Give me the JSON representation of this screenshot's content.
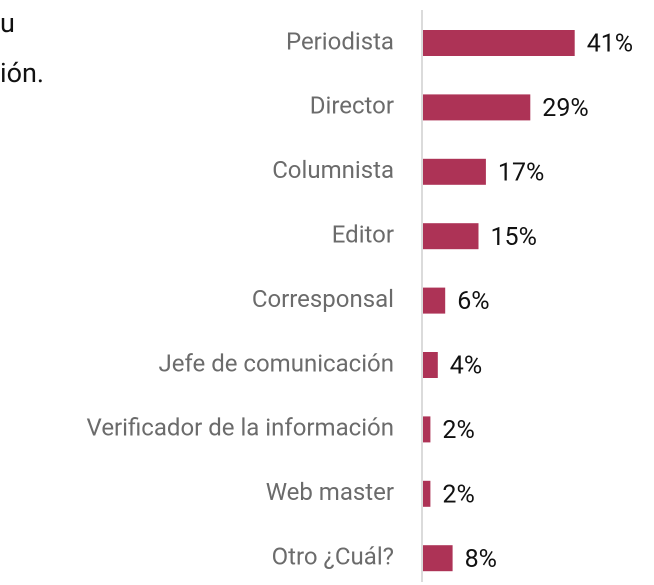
{
  "chart_data": {
    "type": "bar",
    "orientation": "horizontal",
    "title_lines": [
      "u",
      "ión."
    ],
    "categories": [
      "Periodista",
      "Director",
      "Columnista",
      "Editor",
      "Corresponsal",
      "Jefe de comunicación",
      "Verificador de la información",
      "Web master",
      "Otro ¿Cuál?"
    ],
    "values": [
      41,
      29,
      17,
      15,
      6,
      4,
      2,
      2,
      8
    ],
    "value_labels": [
      "41%",
      "29%",
      "17%",
      "15%",
      "6%",
      "4%",
      "2%",
      "2%",
      "8%"
    ],
    "color": "#ad3356",
    "xlim": [
      0,
      60
    ]
  }
}
